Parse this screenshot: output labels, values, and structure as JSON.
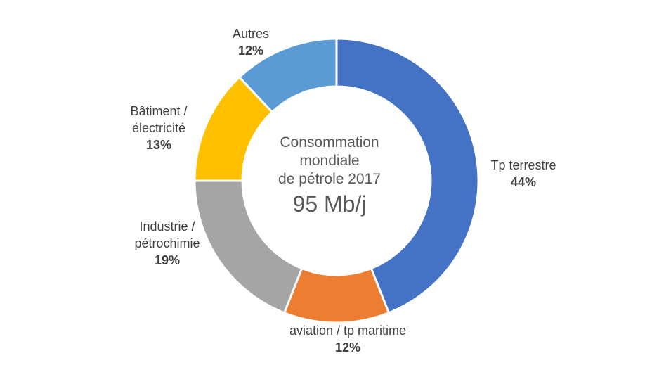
{
  "chart_data": {
    "type": "pie",
    "subtype": "donut",
    "center_title_lines": [
      "Consommation",
      "mondiale",
      "de pétrole 2017"
    ],
    "center_value": "95 Mb/j",
    "slices": [
      {
        "name_lines": [
          "Tp terrestre"
        ],
        "value": 44,
        "label": "44%",
        "color": "#4472C4"
      },
      {
        "name_lines": [
          "aviation / tp maritime"
        ],
        "value": 12,
        "label": "12%",
        "color": "#ED7D31"
      },
      {
        "name_lines": [
          "Industrie /",
          "pétrochimie"
        ],
        "value": 19,
        "label": "19%",
        "color": "#A5A5A5"
      },
      {
        "name_lines": [
          "Bâtiment /",
          "électricité"
        ],
        "value": 13,
        "label": "13%",
        "color": "#FFC000"
      },
      {
        "name_lines": [
          "Autres"
        ],
        "value": 12,
        "label": "12%",
        "color": "#5B9BD5"
      }
    ],
    "start_angle": "top",
    "direction": "clockwise"
  }
}
